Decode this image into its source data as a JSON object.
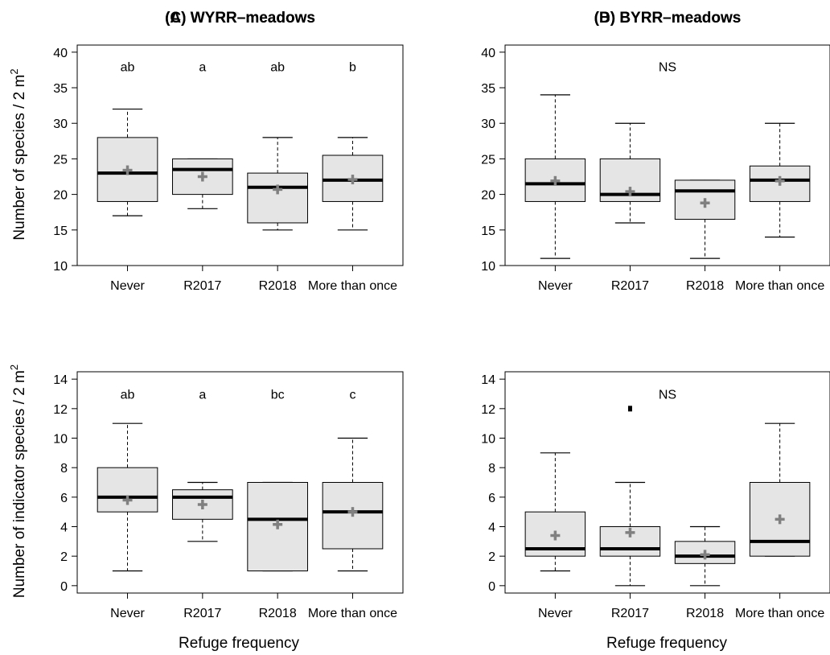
{
  "figure": {
    "shared_ylabels": {
      "top": {
        "text": "Number of species / 2 m",
        "sup": "2"
      },
      "bottom": {
        "text": "Number of indicator species / 2 m",
        "sup": "2"
      }
    },
    "shared_xlabel": "Refuge frequency"
  },
  "colors": {
    "box_fill": "#e5e5e5",
    "mean_marker": "#808080",
    "median": "#000000"
  },
  "chart_data": [
    {
      "type": "box",
      "title": "(A) WYRR–meadows",
      "categories": [
        "Never",
        "R2017",
        "R2018",
        "More than once"
      ],
      "ylim": [
        10,
        41
      ],
      "yticks": [
        10,
        15,
        20,
        25,
        30,
        35,
        40
      ],
      "boxes": [
        {
          "whisker_low": 17,
          "q1": 19,
          "median": 23,
          "q3": 28,
          "whisker_high": 32,
          "mean": 23.4,
          "outliers": []
        },
        {
          "whisker_low": 18,
          "q1": 20,
          "median": 23.5,
          "q3": 25,
          "whisker_high": 25,
          "mean": 22.5,
          "outliers": []
        },
        {
          "whisker_low": 15,
          "q1": 16,
          "median": 21,
          "q3": 23,
          "whisker_high": 28,
          "mean": 20.7,
          "outliers": []
        },
        {
          "whisker_low": 15,
          "q1": 19,
          "median": 22,
          "q3": 25.5,
          "whisker_high": 28,
          "mean": 22.1,
          "outliers": []
        }
      ],
      "letters": [
        "ab",
        "a",
        "ab",
        "b"
      ],
      "letter_y": 38
    },
    {
      "type": "box",
      "title": "(B) BYRR–meadows",
      "categories": [
        "Never",
        "R2017",
        "R2018",
        "More than once"
      ],
      "ylim": [
        10,
        41
      ],
      "yticks": [
        10,
        15,
        20,
        25,
        30,
        35,
        40
      ],
      "boxes": [
        {
          "whisker_low": 11,
          "q1": 19,
          "median": 21.5,
          "q3": 25,
          "whisker_high": 34,
          "mean": 21.9,
          "outliers": []
        },
        {
          "whisker_low": 16,
          "q1": 19,
          "median": 20,
          "q3": 25,
          "whisker_high": 30,
          "mean": 20.4,
          "outliers": []
        },
        {
          "whisker_low": 11,
          "q1": 16.5,
          "median": 20.5,
          "q3": 22,
          "whisker_high": 22,
          "mean": 18.8,
          "outliers": []
        },
        {
          "whisker_low": 14,
          "q1": 19,
          "median": 22,
          "q3": 24,
          "whisker_high": 30,
          "mean": 21.9,
          "outliers": []
        }
      ],
      "letters": [
        "NS"
      ],
      "letter_y": 38
    },
    {
      "type": "box",
      "title": "(C) WYRR–meadows",
      "categories": [
        "Never",
        "R2017",
        "R2018",
        "More than once"
      ],
      "ylim": [
        -0.5,
        14.5
      ],
      "yticks": [
        0,
        2,
        4,
        6,
        8,
        10,
        12,
        14
      ],
      "boxes": [
        {
          "whisker_low": 1,
          "q1": 5,
          "median": 6,
          "q3": 8,
          "whisker_high": 11,
          "mean": 5.8,
          "outliers": []
        },
        {
          "whisker_low": 3,
          "q1": 4.5,
          "median": 6,
          "q3": 6.5,
          "whisker_high": 7,
          "mean": 5.5,
          "outliers": []
        },
        {
          "whisker_low": 1,
          "q1": 1,
          "median": 4.5,
          "q3": 7,
          "whisker_high": 7,
          "mean": 4.15,
          "outliers": []
        },
        {
          "whisker_low": 1,
          "q1": 2.5,
          "median": 5,
          "q3": 7,
          "whisker_high": 10,
          "mean": 5.0,
          "outliers": []
        }
      ],
      "letters": [
        "ab",
        "a",
        "bc",
        "c"
      ],
      "letter_y": 13
    },
    {
      "type": "box",
      "title": "(D) BYRR–meadows",
      "categories": [
        "Never",
        "R2017",
        "R2018",
        "More than once"
      ],
      "ylim": [
        -0.5,
        14.5
      ],
      "yticks": [
        0,
        2,
        4,
        6,
        8,
        10,
        12,
        14
      ],
      "boxes": [
        {
          "whisker_low": 1,
          "q1": 2,
          "median": 2.5,
          "q3": 5,
          "whisker_high": 9,
          "mean": 3.4,
          "outliers": []
        },
        {
          "whisker_low": 0,
          "q1": 2,
          "median": 2.5,
          "q3": 4,
          "whisker_high": 7,
          "mean": 3.6,
          "outliers": [
            12
          ]
        },
        {
          "whisker_low": 0,
          "q1": 1.5,
          "median": 2,
          "q3": 3,
          "whisker_high": 4,
          "mean": 2.1,
          "outliers": []
        },
        {
          "whisker_low": 2,
          "q1": 2,
          "median": 3,
          "q3": 7,
          "whisker_high": 11,
          "mean": 4.5,
          "outliers": []
        }
      ],
      "letters": [
        "NS"
      ],
      "letter_y": 13
    }
  ]
}
